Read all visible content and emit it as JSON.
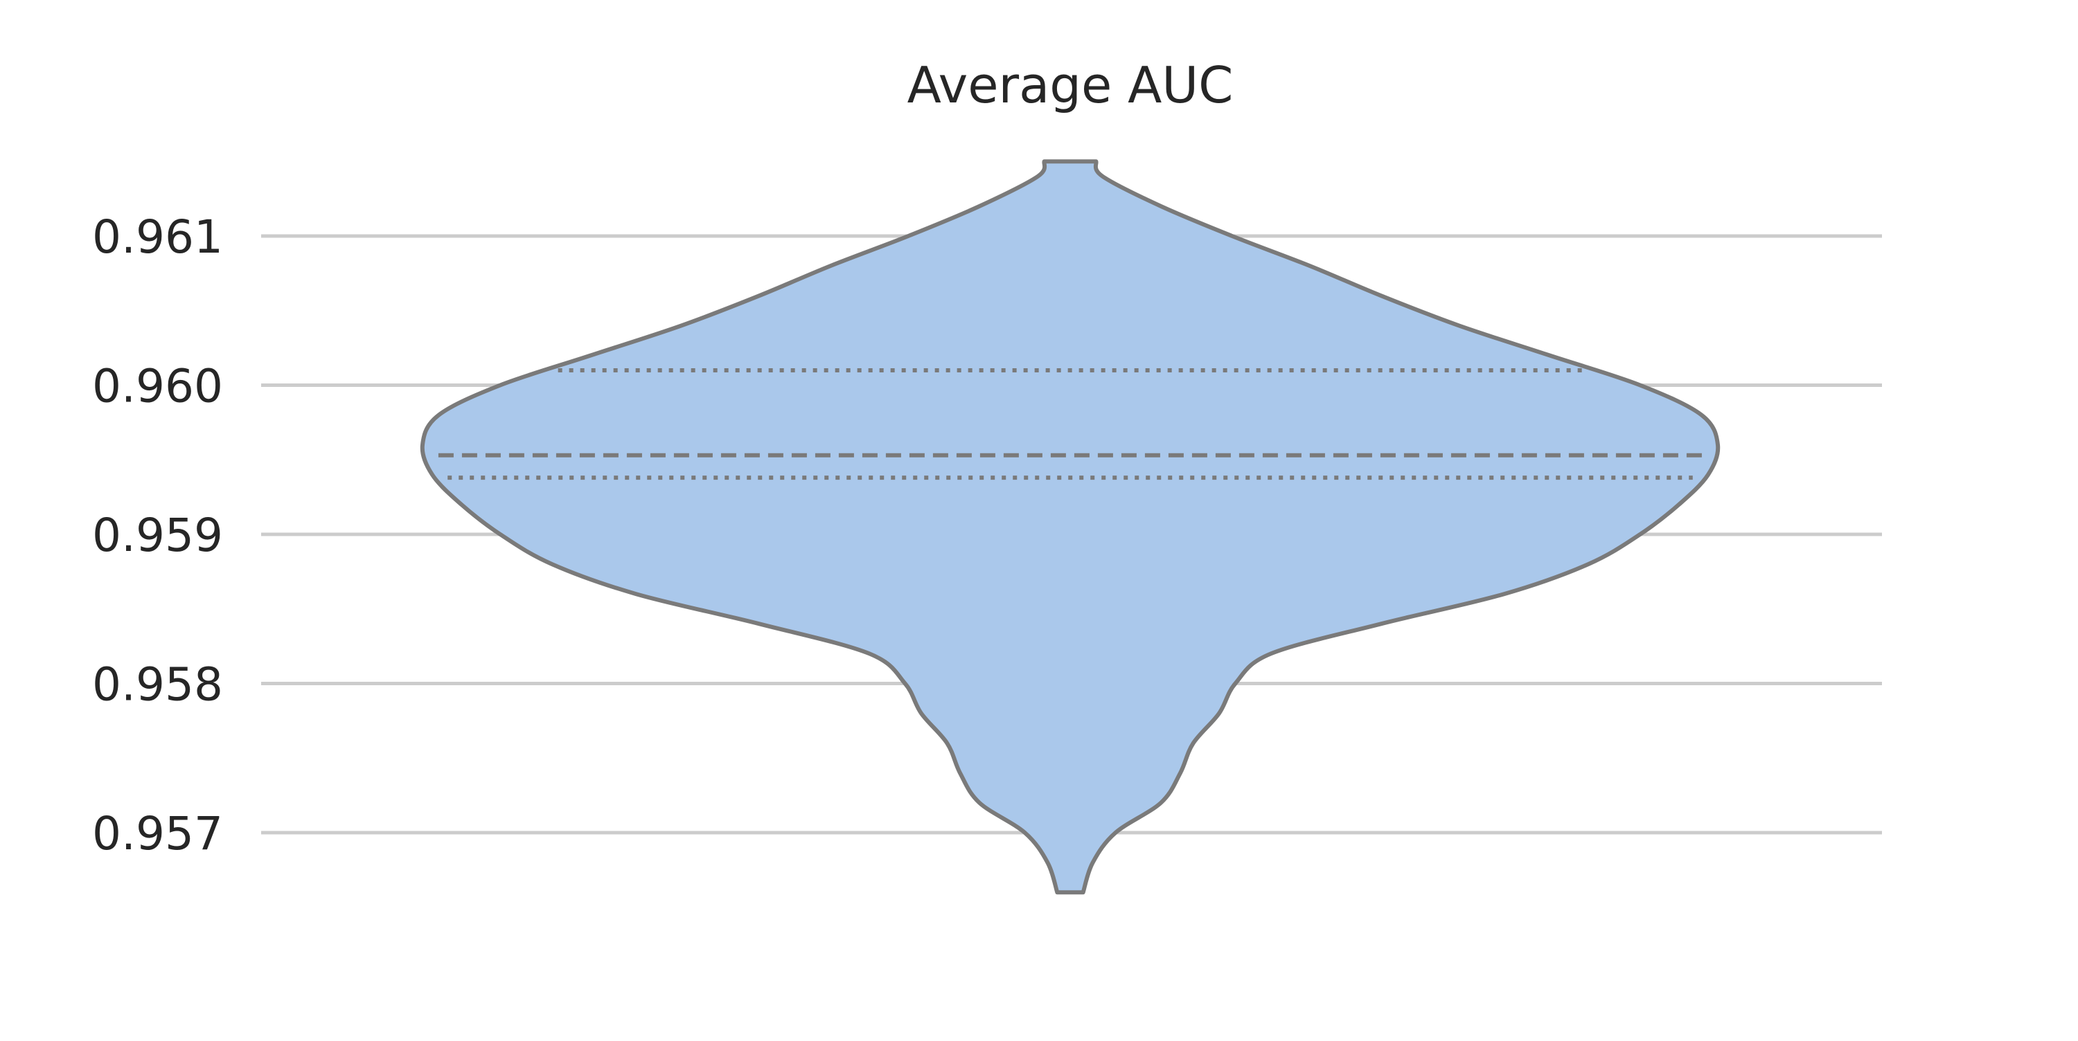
{
  "chart_data": {
    "type": "violin",
    "title": "Average AUC",
    "xlabel": "",
    "ylabel": "",
    "ylim": [
      0.9562,
      0.9625
    ],
    "yticks": [
      0.957,
      0.958,
      0.959,
      0.96,
      0.961
    ],
    "ytick_labels": [
      "0.957",
      "0.958",
      "0.959",
      "0.960",
      "0.961"
    ],
    "grid": "horizontal",
    "series": [
      {
        "min": 0.9566,
        "max": 0.9615,
        "q1": 0.95938,
        "median": 0.95953,
        "q3": 0.9601,
        "density_profile": [
          [
            0.9566,
            0.02
          ],
          [
            0.9568,
            0.035
          ],
          [
            0.957,
            0.07
          ],
          [
            0.9572,
            0.14
          ],
          [
            0.9574,
            0.17
          ],
          [
            0.9576,
            0.19
          ],
          [
            0.9578,
            0.23
          ],
          [
            0.958,
            0.255
          ],
          [
            0.9582,
            0.31
          ],
          [
            0.9584,
            0.48
          ],
          [
            0.9586,
            0.67
          ],
          [
            0.9588,
            0.8
          ],
          [
            0.959,
            0.88
          ],
          [
            0.9592,
            0.94
          ],
          [
            0.9594,
            0.985
          ],
          [
            0.9596,
            1.0
          ],
          [
            0.9598,
            0.975
          ],
          [
            0.96,
            0.88
          ],
          [
            0.9602,
            0.74
          ],
          [
            0.9604,
            0.6
          ],
          [
            0.9606,
            0.48
          ],
          [
            0.9608,
            0.37
          ],
          [
            0.961,
            0.25
          ],
          [
            0.9612,
            0.14
          ],
          [
            0.9614,
            0.05
          ],
          [
            0.9615,
            0.04
          ]
        ]
      }
    ],
    "colors": {
      "fill": "#aac8eb",
      "outline": "#7a7a7a",
      "grid": "#cccccc",
      "text": "#262626"
    }
  }
}
